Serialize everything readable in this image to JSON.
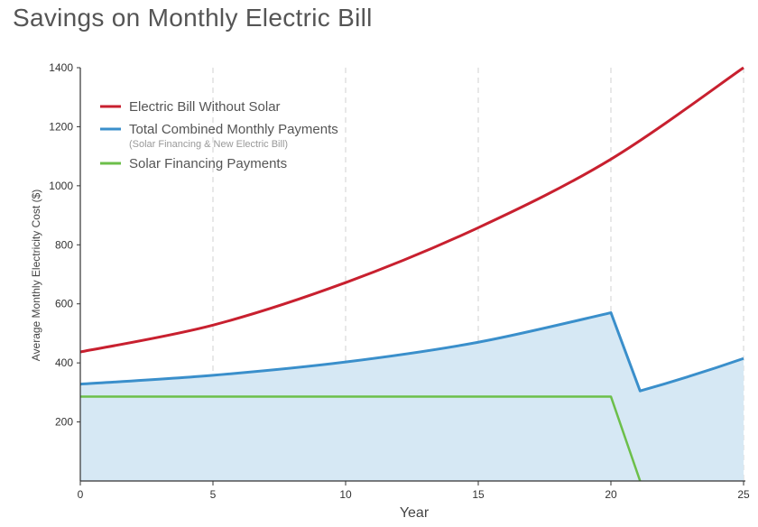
{
  "chart_data": {
    "type": "line",
    "title": "Savings on Monthly Electric Bill",
    "xlabel": "Year",
    "ylabel": "Average Monthly Electricity Cost ($)",
    "xlim": [
      0,
      25
    ],
    "ylim": [
      0,
      1400
    ],
    "x_ticks": [
      "0",
      "5",
      "10",
      "15",
      "20",
      "25"
    ],
    "y_ticks": [
      "200",
      "400",
      "600",
      "800",
      "1000",
      "1200",
      "1400"
    ],
    "grid": "vertical dashed",
    "legend_position": "top-left",
    "series": [
      {
        "name": "Electric Bill Without Solar",
        "color": "#c8202f",
        "x": [
          0,
          5,
          10,
          15,
          20,
          25
        ],
        "y": [
          437,
          528,
          672,
          858,
          1090,
          1400
        ]
      },
      {
        "name": "Total Combined Monthly Payments",
        "subtitle": "(Solar Financing & New Electric Bill)",
        "color": "#3a8fcb",
        "fill": "#d6e8f4",
        "x": [
          0,
          5,
          10,
          15,
          20,
          21.1,
          25
        ],
        "y": [
          328,
          358,
          403,
          470,
          570,
          305,
          415
        ]
      },
      {
        "name": "Solar Financing Payments",
        "color": "#6cbf4a",
        "x": [
          0,
          5,
          10,
          15,
          20,
          21.1
        ],
        "y": [
          286,
          286,
          286,
          286,
          286,
          0
        ]
      }
    ]
  }
}
